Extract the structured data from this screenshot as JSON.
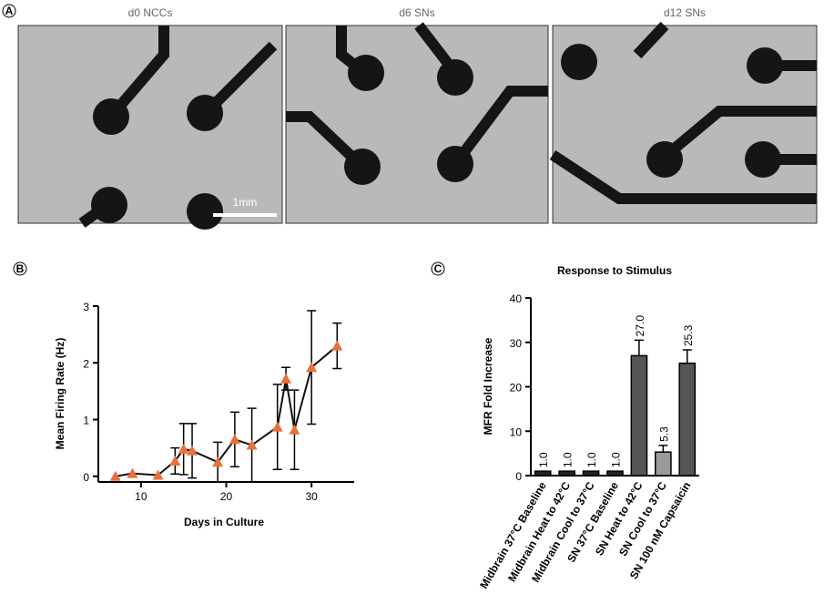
{
  "panel_labels": [
    "A",
    "B",
    "C"
  ],
  "images": [
    {
      "title": "d0 NCCs"
    },
    {
      "title": "d6 SNs"
    },
    {
      "title": "d12 SNs"
    }
  ],
  "scale_bar": "1mm",
  "chart_data": [
    {
      "type": "line",
      "x_label": "Days in Culture",
      "y_label": "Mean Firing Rate (Hz)",
      "x": [
        7,
        9,
        12,
        14,
        15,
        16,
        19,
        21,
        23,
        26,
        27,
        28,
        30,
        33
      ],
      "values": [
        0,
        0.05,
        0.02,
        0.27,
        0.48,
        0.45,
        0.25,
        0.65,
        0.55,
        0.87,
        1.72,
        0.82,
        1.92,
        2.3
      ],
      "errors": [
        0,
        0,
        0,
        0.23,
        0.45,
        0.48,
        0.35,
        0.48,
        0.65,
        0.75,
        0.2,
        0.7,
        1.0,
        0.4
      ],
      "color": "#e8703a",
      "line_color": "#111111",
      "xlim": [
        5,
        35
      ],
      "xticks": [
        10,
        20,
        30
      ],
      "ylim": [
        -0.1,
        3
      ],
      "yticks": [
        0,
        1,
        2,
        3
      ]
    },
    {
      "type": "bar",
      "title": "Response to Stimulus",
      "y_label": "MFR Fold Increase",
      "categories": [
        "Midbrain 37°C Baseline",
        "Midbrain Heat to 42°C",
        "Midbrain Cool to 37°C",
        "SN 37°C Baseline",
        "SN Heat to 42°C",
        "SN Cool to 37°C",
        "SN 100 nM Capsaicin"
      ],
      "values": [
        1.0,
        1.0,
        1.0,
        1.0,
        27.0,
        5.3,
        25.3
      ],
      "value_labels": [
        "1.0",
        "1.0",
        "1.0",
        "1.0",
        "27.0",
        "5.3",
        "25.3"
      ],
      "errors": [
        0,
        0,
        0,
        0,
        3.5,
        1.5,
        3.0
      ],
      "colors": [
        "#222222",
        "#222222",
        "#222222",
        "#222222",
        "#555555",
        "#9a9a9a",
        "#555555"
      ],
      "ylim": [
        0,
        40
      ],
      "yticks": [
        0,
        10,
        20,
        30,
        40
      ]
    }
  ]
}
